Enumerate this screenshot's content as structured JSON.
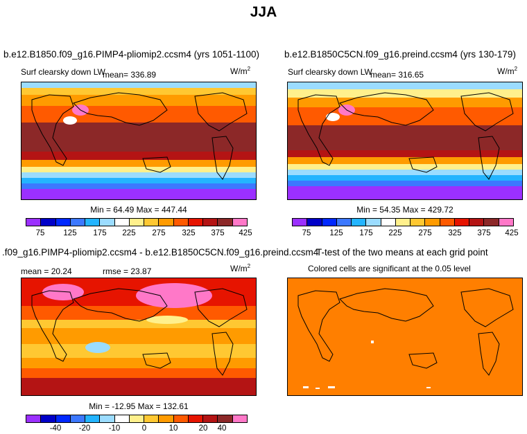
{
  "title": "JJA",
  "panels": [
    {
      "title": "b.e12.B1850.f09_g16.PIMP4-pliomip2.ccsm4 (yrs 1051-1100)",
      "variable": "Surf clearsky down LW",
      "mean": "mean= 336.89",
      "units": "W/m",
      "units_exp": "2",
      "minmax": "Min = 64.49 Max = 447.44",
      "colorbar_colors": [
        "#9b30ff",
        "#0000c8",
        "#0028ff",
        "#3c78ff",
        "#23b4ff",
        "#9bdcff",
        "#ffffff",
        "#fff08c",
        "#ffc832",
        "#ff9b00",
        "#ff5a00",
        "#e61400",
        "#b41414",
        "#8c2828",
        "#ff78c8"
      ],
      "tick_labels": [
        "75",
        "125",
        "175",
        "225",
        "275",
        "325",
        "375",
        "425"
      ]
    },
    {
      "title": "b.e12.B1850C5CN.f09_g16.preind.ccsm4 (yrs 130-179)",
      "variable": "Surf clearsky down LW",
      "mean": "mean= 316.65",
      "units": "W/m",
      "units_exp": "2",
      "minmax": "Min = 54.35 Max = 429.72",
      "colorbar_colors": [
        "#9b30ff",
        "#0000c8",
        "#0028ff",
        "#3c78ff",
        "#23b4ff",
        "#9bdcff",
        "#ffffff",
        "#fff08c",
        "#ffc832",
        "#ff9b00",
        "#ff5a00",
        "#e61400",
        "#b41414",
        "#8c2828",
        "#ff78c8"
      ],
      "tick_labels": [
        "75",
        "125",
        "175",
        "225",
        "275",
        "325",
        "375",
        "425"
      ]
    },
    {
      "title": ".f09_g16.PIMP4-pliomip2.ccsm4 - b.e12.B1850C5CN.f09_g16.preind.ccsm4",
      "mean": "mean =  20.24",
      "rmse": "rmse =  23.87",
      "units": "W/m",
      "units_exp": "2",
      "minmax": "Min = -12.95 Max = 132.61",
      "colorbar_colors": [
        "#9b30ff",
        "#0000c8",
        "#0028ff",
        "#3c78ff",
        "#23b4ff",
        "#9bdcff",
        "#ffffff",
        "#fff08c",
        "#ffc832",
        "#ff9b00",
        "#ff5a00",
        "#e61400",
        "#b41414",
        "#8c2828",
        "#ff78c8"
      ],
      "tick_labels": [
        "-40",
        "-20",
        "-10",
        "0",
        "10",
        "20",
        "40"
      ]
    },
    {
      "title": "T-test of the two means at each grid point",
      "subtitle": "Colored cells are significant at the 0.05 level",
      "fill_color": "#ff7f00"
    }
  ]
}
